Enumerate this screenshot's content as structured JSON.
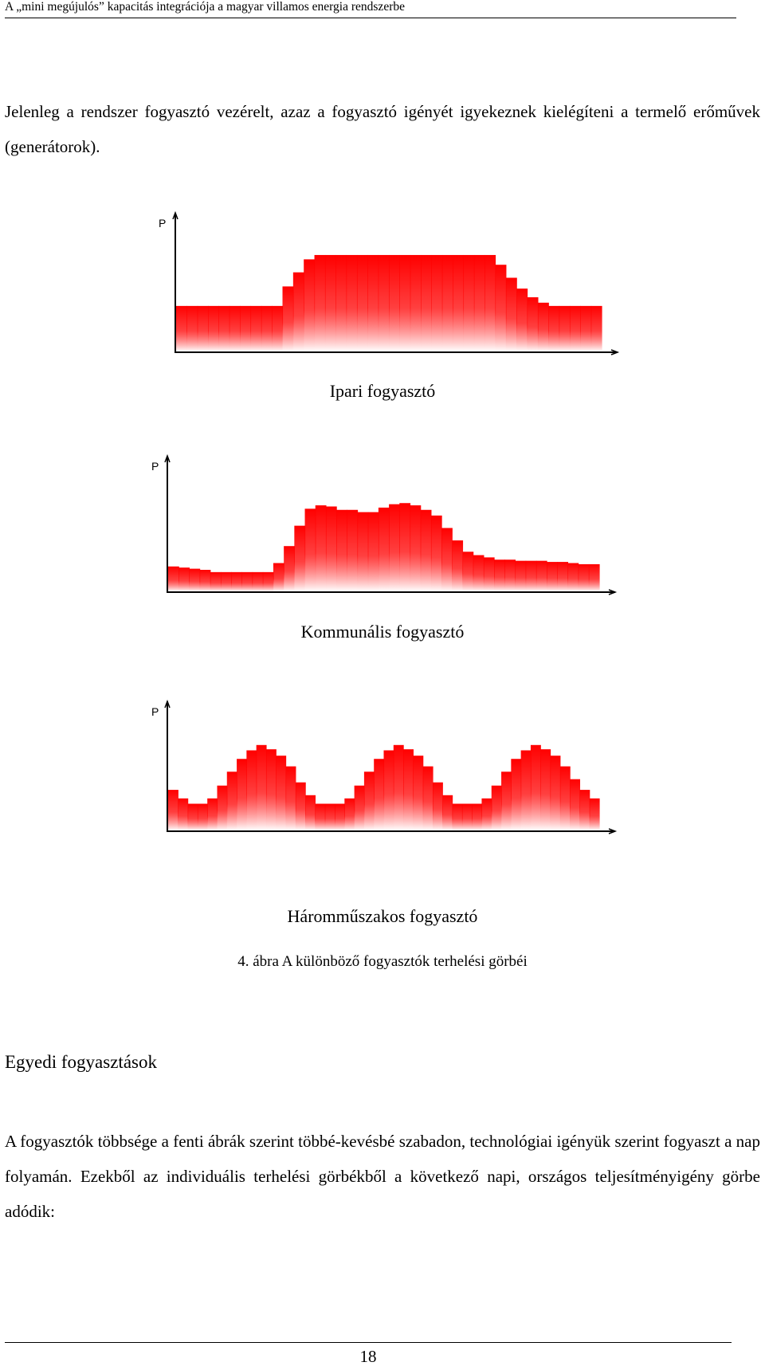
{
  "header": {
    "running_title": "A „mini megújulós” kapacitás integrációja a magyar villamos energia rendszerbe"
  },
  "intro": {
    "text": "Jelenleg a rendszer fogyasztó vezérelt, azaz a fogyasztó igényét igyekeznek kielégíteni a termelő erőművek (generátorok)."
  },
  "colors": {
    "fill_top": "#ff0000",
    "fill_bottom": "#ffffff",
    "axis": "#000000"
  },
  "chart_data": [
    {
      "type": "area",
      "title": "",
      "ylabel": "P",
      "xlabel": "",
      "caption": "Ipari fogyasztó",
      "x": [
        0,
        1,
        2,
        3,
        4,
        5,
        6,
        7,
        8,
        9,
        10,
        11,
        12,
        13,
        14,
        15,
        16,
        17,
        18,
        19,
        20,
        21,
        22,
        23,
        24,
        25,
        26,
        27,
        28,
        29,
        30,
        31,
        32,
        33,
        34,
        35,
        36,
        37,
        38,
        39
      ],
      "values": [
        0.42,
        0.42,
        0.42,
        0.42,
        0.42,
        0.42,
        0.42,
        0.42,
        0.42,
        0.42,
        0.6,
        0.73,
        0.85,
        0.89,
        0.89,
        0.89,
        0.89,
        0.89,
        0.89,
        0.89,
        0.89,
        0.89,
        0.89,
        0.89,
        0.89,
        0.89,
        0.89,
        0.89,
        0.89,
        0.89,
        0.8,
        0.68,
        0.58,
        0.5,
        0.45,
        0.42,
        0.42,
        0.42,
        0.42,
        0.42
      ],
      "ylim": [
        0,
        1
      ],
      "grid": false
    },
    {
      "type": "area",
      "title": "",
      "ylabel": "P",
      "xlabel": "",
      "caption": "Kommunális fogyasztó",
      "x": [
        0,
        1,
        2,
        3,
        4,
        5,
        6,
        7,
        8,
        9,
        10,
        11,
        12,
        13,
        14,
        15,
        16,
        17,
        18,
        19,
        20,
        21,
        22,
        23,
        24,
        25,
        26,
        27,
        28,
        29,
        30,
        31,
        32,
        33,
        34,
        35,
        36,
        37,
        38,
        39,
        40
      ],
      "values": [
        0.22,
        0.21,
        0.2,
        0.19,
        0.17,
        0.17,
        0.17,
        0.17,
        0.17,
        0.17,
        0.25,
        0.4,
        0.58,
        0.73,
        0.76,
        0.75,
        0.72,
        0.72,
        0.7,
        0.7,
        0.74,
        0.77,
        0.78,
        0.76,
        0.72,
        0.67,
        0.56,
        0.45,
        0.35,
        0.32,
        0.3,
        0.28,
        0.28,
        0.27,
        0.27,
        0.27,
        0.26,
        0.26,
        0.25,
        0.24,
        0.24
      ],
      "ylim": [
        0,
        1
      ],
      "grid": false
    },
    {
      "type": "area",
      "title": "",
      "ylabel": "P",
      "xlabel": "",
      "caption": "Háromműszakos fogyasztó",
      "x": [
        0,
        1,
        2,
        3,
        4,
        5,
        6,
        7,
        8,
        9,
        10,
        11,
        12,
        13,
        14,
        15,
        16,
        17,
        18,
        19,
        20,
        21,
        22,
        23,
        24,
        25,
        26,
        27,
        28,
        29,
        30,
        31,
        32,
        33,
        34,
        35,
        36,
        37,
        38,
        39,
        40,
        41,
        42,
        43
      ],
      "values": [
        0.38,
        0.3,
        0.25,
        0.25,
        0.3,
        0.42,
        0.55,
        0.67,
        0.75,
        0.8,
        0.76,
        0.7,
        0.6,
        0.45,
        0.33,
        0.25,
        0.25,
        0.25,
        0.3,
        0.42,
        0.55,
        0.67,
        0.75,
        0.8,
        0.76,
        0.7,
        0.6,
        0.45,
        0.33,
        0.25,
        0.25,
        0.25,
        0.3,
        0.42,
        0.55,
        0.67,
        0.75,
        0.8,
        0.76,
        0.7,
        0.6,
        0.48,
        0.38,
        0.3
      ],
      "ylim": [
        0,
        1
      ],
      "grid": false
    }
  ],
  "figure": {
    "caption": "4. ábra  A különböző fogyasztók terhelési görbéi"
  },
  "section": {
    "heading": "Egyedi fogyasztások"
  },
  "body": {
    "text": "A fogyasztók többsége a fenti ábrák szerint többé-kevésbé szabadon, technológiai igényük szerint fogyaszt a nap folyamán. Ezekből az individuális terhelési görbékből a következő napi, országos teljesítményigény görbe adódik:"
  },
  "footer": {
    "page_number": "18"
  }
}
